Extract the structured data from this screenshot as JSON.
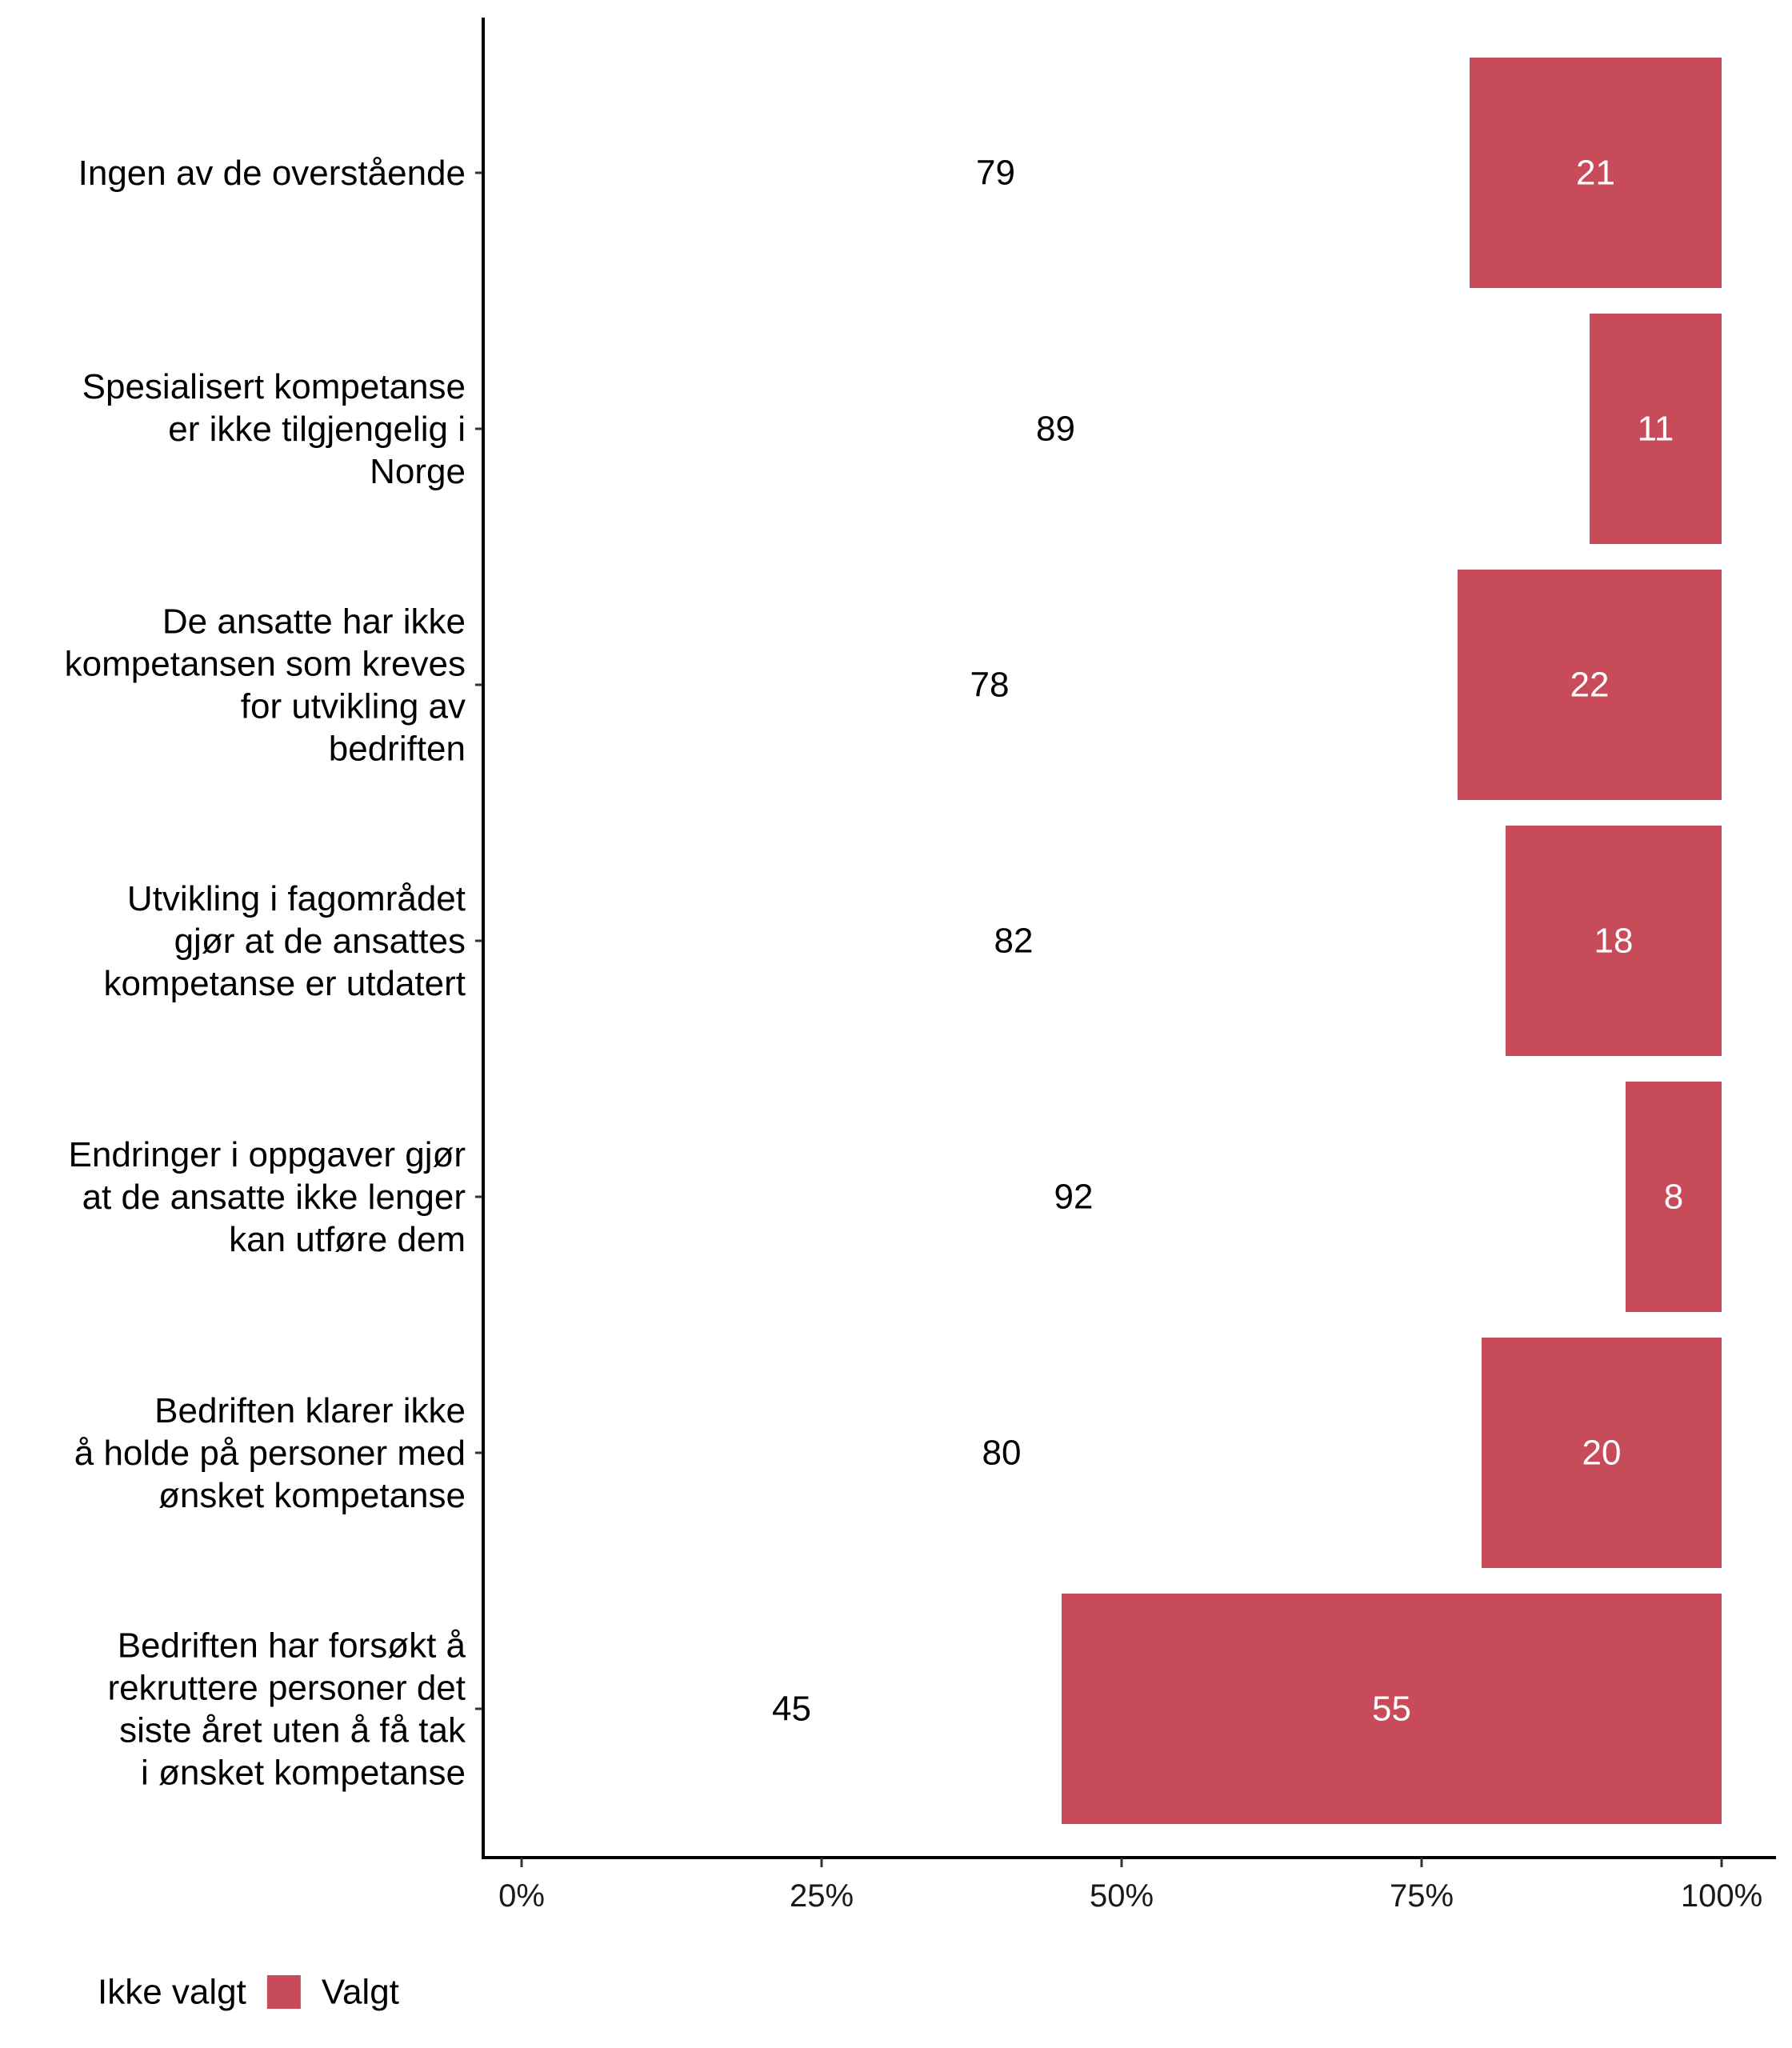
{
  "chart_data": {
    "type": "bar",
    "orientation": "horizontal",
    "stacked": true,
    "normalized": true,
    "categories": [
      [
        "Ingen av de overstående"
      ],
      [
        "Spesialisert kompetanse",
        "er ikke tilgjengelig i",
        "Norge"
      ],
      [
        "De ansatte har ikke",
        "kompetansen som kreves",
        "for utvikling av",
        "bedriften"
      ],
      [
        "Utvikling i fagområdet",
        "gjør at de ansattes",
        "kompetanse er utdatert"
      ],
      [
        "Endringer i oppgaver gjør",
        "at de ansatte ikke lenger",
        "kan utføre dem"
      ],
      [
        "Bedriften klarer ikke",
        "å holde på personer med",
        "ønsket kompetanse"
      ],
      [
        "Bedriften har forsøkt å",
        "rekruttere personer det",
        "siste året uten å få tak",
        "i ønsket kompetanse"
      ]
    ],
    "series": [
      {
        "name": "Ikke valgt",
        "color": "#ffffff",
        "label_color": "#000000",
        "values": [
          79,
          89,
          78,
          82,
          92,
          80,
          45
        ]
      },
      {
        "name": "Valgt",
        "color": "#c84b5a",
        "label_color": "#ffffff",
        "values": [
          21,
          11,
          22,
          18,
          8,
          20,
          55
        ]
      }
    ],
    "x_ticks": [
      "0%",
      "25%",
      "50%",
      "75%",
      "100%"
    ],
    "x_tick_values": [
      0,
      25,
      50,
      75,
      100
    ],
    "xlim": [
      0,
      100
    ],
    "title": "",
    "xlabel": "",
    "ylabel": "",
    "legend_position": "bottom-left"
  }
}
